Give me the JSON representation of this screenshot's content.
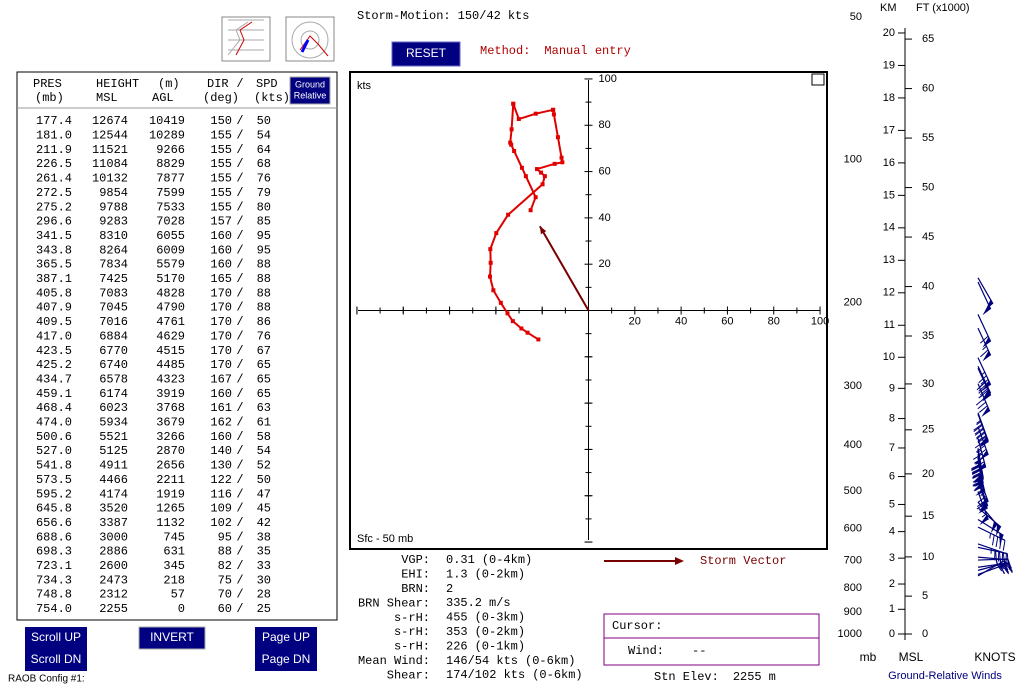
{
  "toolbar": {
    "storm_motion": {
      "label": "Storm-Motion:",
      "dir": 150,
      "sep": "/",
      "spd": 42,
      "unit": "kts"
    },
    "reset": "RESET",
    "method_label": "Method:",
    "method": "Manual entry"
  },
  "table": {
    "toggle": [
      "Ground",
      "Relative"
    ],
    "header1": [
      "PRES",
      "HEIGHT",
      "(m)",
      "DIR",
      "/",
      "SPD"
    ],
    "header2": [
      "(mb)",
      "MSL",
      "AGL",
      "(deg)",
      "(kts)"
    ],
    "sep": "/",
    "rows": [
      [
        "177.4",
        12674,
        10419,
        150,
        50
      ],
      [
        "181.0",
        12544,
        10289,
        155,
        54
      ],
      [
        "211.9",
        11521,
        9266,
        155,
        64
      ],
      [
        "226.5",
        11084,
        8829,
        155,
        68
      ],
      [
        "261.4",
        10132,
        7877,
        155,
        76
      ],
      [
        "272.5",
        9854,
        7599,
        155,
        79
      ],
      [
        "275.2",
        9788,
        7533,
        155,
        80
      ],
      [
        "296.6",
        9283,
        7028,
        157,
        85
      ],
      [
        "341.5",
        8310,
        6055,
        160,
        95
      ],
      [
        "343.8",
        8264,
        6009,
        160,
        95
      ],
      [
        "365.5",
        7834,
        5579,
        160,
        88
      ],
      [
        "387.1",
        7425,
        5170,
        165,
        88
      ],
      [
        "405.8",
        7083,
        4828,
        170,
        88
      ],
      [
        "407.9",
        7045,
        4790,
        170,
        88
      ],
      [
        "409.5",
        7016,
        4761,
        170,
        86
      ],
      [
        "417.0",
        6884,
        4629,
        170,
        76
      ],
      [
        "423.5",
        6770,
        4515,
        170,
        67
      ],
      [
        "425.2",
        6740,
        4485,
        170,
        65
      ],
      [
        "434.7",
        6578,
        4323,
        167,
        65
      ],
      [
        "459.1",
        6174,
        3919,
        160,
        65
      ],
      [
        "468.4",
        6023,
        3768,
        161,
        63
      ],
      [
        "474.0",
        5934,
        3679,
        162,
        61
      ],
      [
        "500.6",
        5521,
        3266,
        160,
        58
      ],
      [
        "527.0",
        5125,
        2870,
        140,
        54
      ],
      [
        "541.8",
        4911,
        2656,
        130,
        52
      ],
      [
        "573.5",
        4466,
        2211,
        122,
        50
      ],
      [
        "595.2",
        4174,
        1919,
        116,
        47
      ],
      [
        "645.8",
        3520,
        1265,
        109,
        45
      ],
      [
        "656.6",
        3387,
        1132,
        102,
        42
      ],
      [
        "688.6",
        3000,
        745,
        95,
        38
      ],
      [
        "698.3",
        2886,
        631,
        88,
        35
      ],
      [
        "723.1",
        2600,
        345,
        82,
        33
      ],
      [
        "734.3",
        2473,
        218,
        75,
        30
      ],
      [
        "748.8",
        2312,
        57,
        70,
        28
      ],
      [
        "754.0",
        2255,
        0,
        60,
        25
      ]
    ]
  },
  "buttons": {
    "scroll_up": "Scroll UP",
    "scroll_dn": "Scroll DN",
    "invert": "INVERT",
    "page_up": "Page UP",
    "page_dn": "Page DN"
  },
  "footer": "RAOB Config #1:",
  "hodograph": {
    "unit": "kts",
    "layer": "Sfc - 50 mb",
    "lim": [
      -103,
      103
    ],
    "ticks": [
      20,
      40,
      60,
      80,
      100
    ],
    "minor_ticks": [
      -100,
      -90,
      -80,
      -70,
      -60,
      -50,
      -40,
      -30,
      -20,
      -10,
      10,
      30,
      50,
      70,
      90
    ],
    "line_color": "#e00000",
    "vector_color": "#7a0000"
  },
  "stats": [
    [
      "VGP:",
      "0.31",
      "(0-4km)"
    ],
    [
      "EHI:",
      "1.3",
      "(0-2km)"
    ],
    [
      "BRN:",
      "2",
      ""
    ],
    [
      "BRN Shear:",
      "335.2",
      "m/s"
    ],
    [
      "s-rH:",
      "455",
      "(0-3km)"
    ],
    [
      "s-rH:",
      "353",
      "(0-2km)"
    ],
    [
      "s-rH:",
      "226",
      "(0-1km)"
    ],
    [
      "Mean Wind:",
      "146/54 kts",
      "(0-6km)"
    ],
    [
      "Shear:",
      "174/102 kts",
      "(0-6km)"
    ]
  ],
  "legend": "Storm Vector",
  "cursor": {
    "label": "Cursor:",
    "wind_label": "Wind:",
    "wind": "--"
  },
  "station": [
    "Stn Elev:",
    "2255",
    "m"
  ],
  "winds_panel": {
    "km_label": "KM",
    "ft_label": "FT (x1000)",
    "p_label": "mb",
    "msl": "MSL",
    "knots": "KNOTS",
    "title": "Ground-Relative Winds",
    "plim": [
      50,
      1000
    ],
    "pticks": [
      50,
      100,
      200,
      300,
      400,
      500,
      600,
      700,
      800,
      900,
      1000
    ],
    "kmticks": [
      0,
      1,
      2,
      3,
      4,
      5,
      6,
      7,
      8,
      9,
      10,
      11,
      12,
      13,
      14,
      15,
      16,
      17,
      18,
      19,
      20
    ],
    "ftticks": [
      0,
      5,
      10,
      15,
      20,
      25,
      30,
      35,
      40,
      45,
      50,
      55,
      60,
      65
    ],
    "color": "#00007a"
  }
}
